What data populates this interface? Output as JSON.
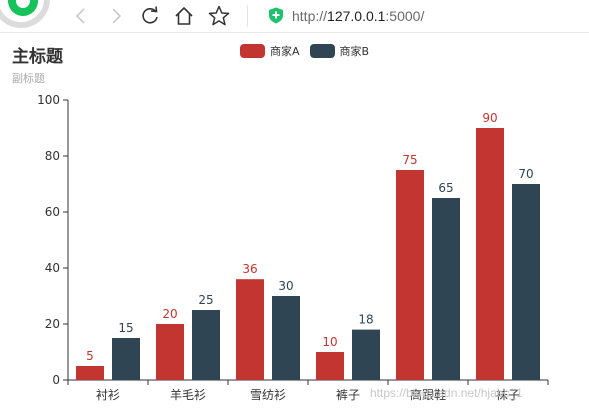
{
  "browser": {
    "url_prefix": "http://",
    "url_host": "127.0.0.1",
    "url_port": ":5000/",
    "icons": {
      "back": "back-arrow-icon",
      "forward": "forward-arrow-icon",
      "reload": "reload-icon",
      "home": "home-icon",
      "favorite": "star-icon",
      "secure": "shield-icon"
    }
  },
  "chart_data": {
    "type": "bar",
    "title": "主标题",
    "subtitle": "副标题",
    "categories": [
      "衬衫",
      "羊毛衫",
      "雪纺衫",
      "裤子",
      "高跟鞋",
      "袜子"
    ],
    "series": [
      {
        "name": "商家A",
        "color": "#c23531",
        "values": [
          5,
          20,
          36,
          10,
          75,
          90
        ]
      },
      {
        "name": "商家B",
        "color": "#2f4554",
        "values": [
          15,
          25,
          30,
          18,
          65,
          70
        ]
      }
    ],
    "ylim": [
      0,
      100
    ],
    "yticks": [
      0,
      20,
      40,
      60,
      80,
      100
    ],
    "legend_position": "top-center",
    "grid": false
  },
  "watermark": "https://blog.csdn.net/hjabc_1"
}
